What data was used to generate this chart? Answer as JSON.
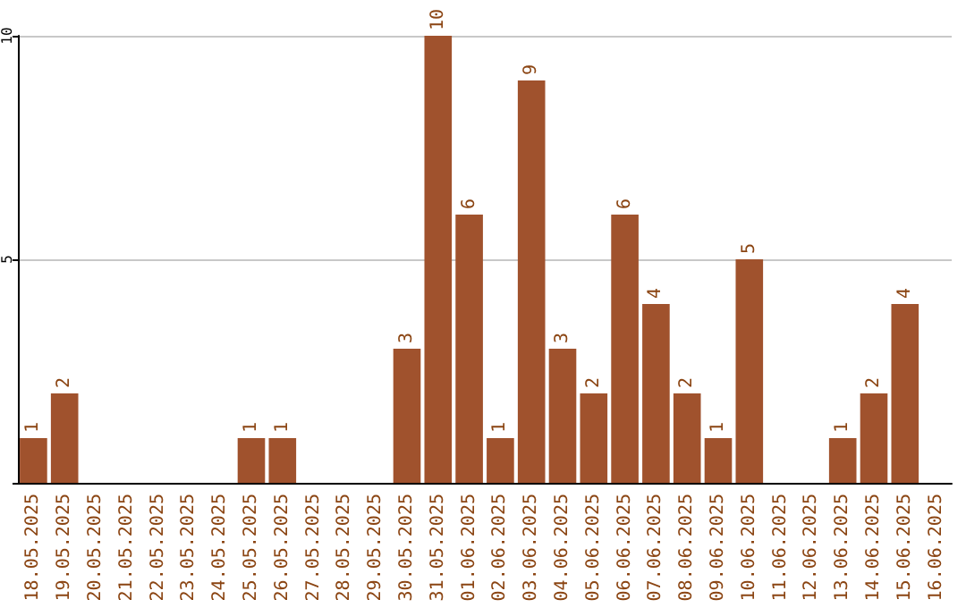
{
  "chart_data": {
    "type": "bar",
    "categories": [
      "18.05.2025",
      "19.05.2025",
      "20.05.2025",
      "21.05.2025",
      "22.05.2025",
      "23.05.2025",
      "24.05.2025",
      "25.05.2025",
      "26.05.2025",
      "27.05.2025",
      "28.05.2025",
      "29.05.2025",
      "30.05.2025",
      "31.05.2025",
      "01.06.2025",
      "02.06.2025",
      "03.06.2025",
      "04.06.2025",
      "05.06.2025",
      "06.06.2025",
      "07.06.2025",
      "08.06.2025",
      "09.06.2025",
      "10.06.2025",
      "11.06.2025",
      "12.06.2025",
      "13.06.2025",
      "14.06.2025",
      "15.06.2025",
      "16.06.2025"
    ],
    "values": [
      1,
      2,
      0,
      0,
      0,
      0,
      0,
      1,
      1,
      0,
      0,
      0,
      3,
      10,
      6,
      1,
      9,
      3,
      2,
      6,
      4,
      2,
      1,
      5,
      0,
      0,
      1,
      2,
      4,
      0
    ],
    "value_labels": [
      "1",
      "2",
      null,
      null,
      null,
      null,
      null,
      "1",
      "1",
      null,
      null,
      null,
      "3",
      "10",
      "6",
      "1",
      "9",
      "3",
      "2",
      "6",
      "4",
      "2",
      "1",
      "5",
      null,
      null,
      "1",
      "2",
      "4",
      null
    ],
    "color": "#a0522d",
    "ylim": [
      0,
      10
    ],
    "yticks": [
      {
        "value": 0,
        "label": null
      },
      5,
      10
    ],
    "grid": "y"
  }
}
